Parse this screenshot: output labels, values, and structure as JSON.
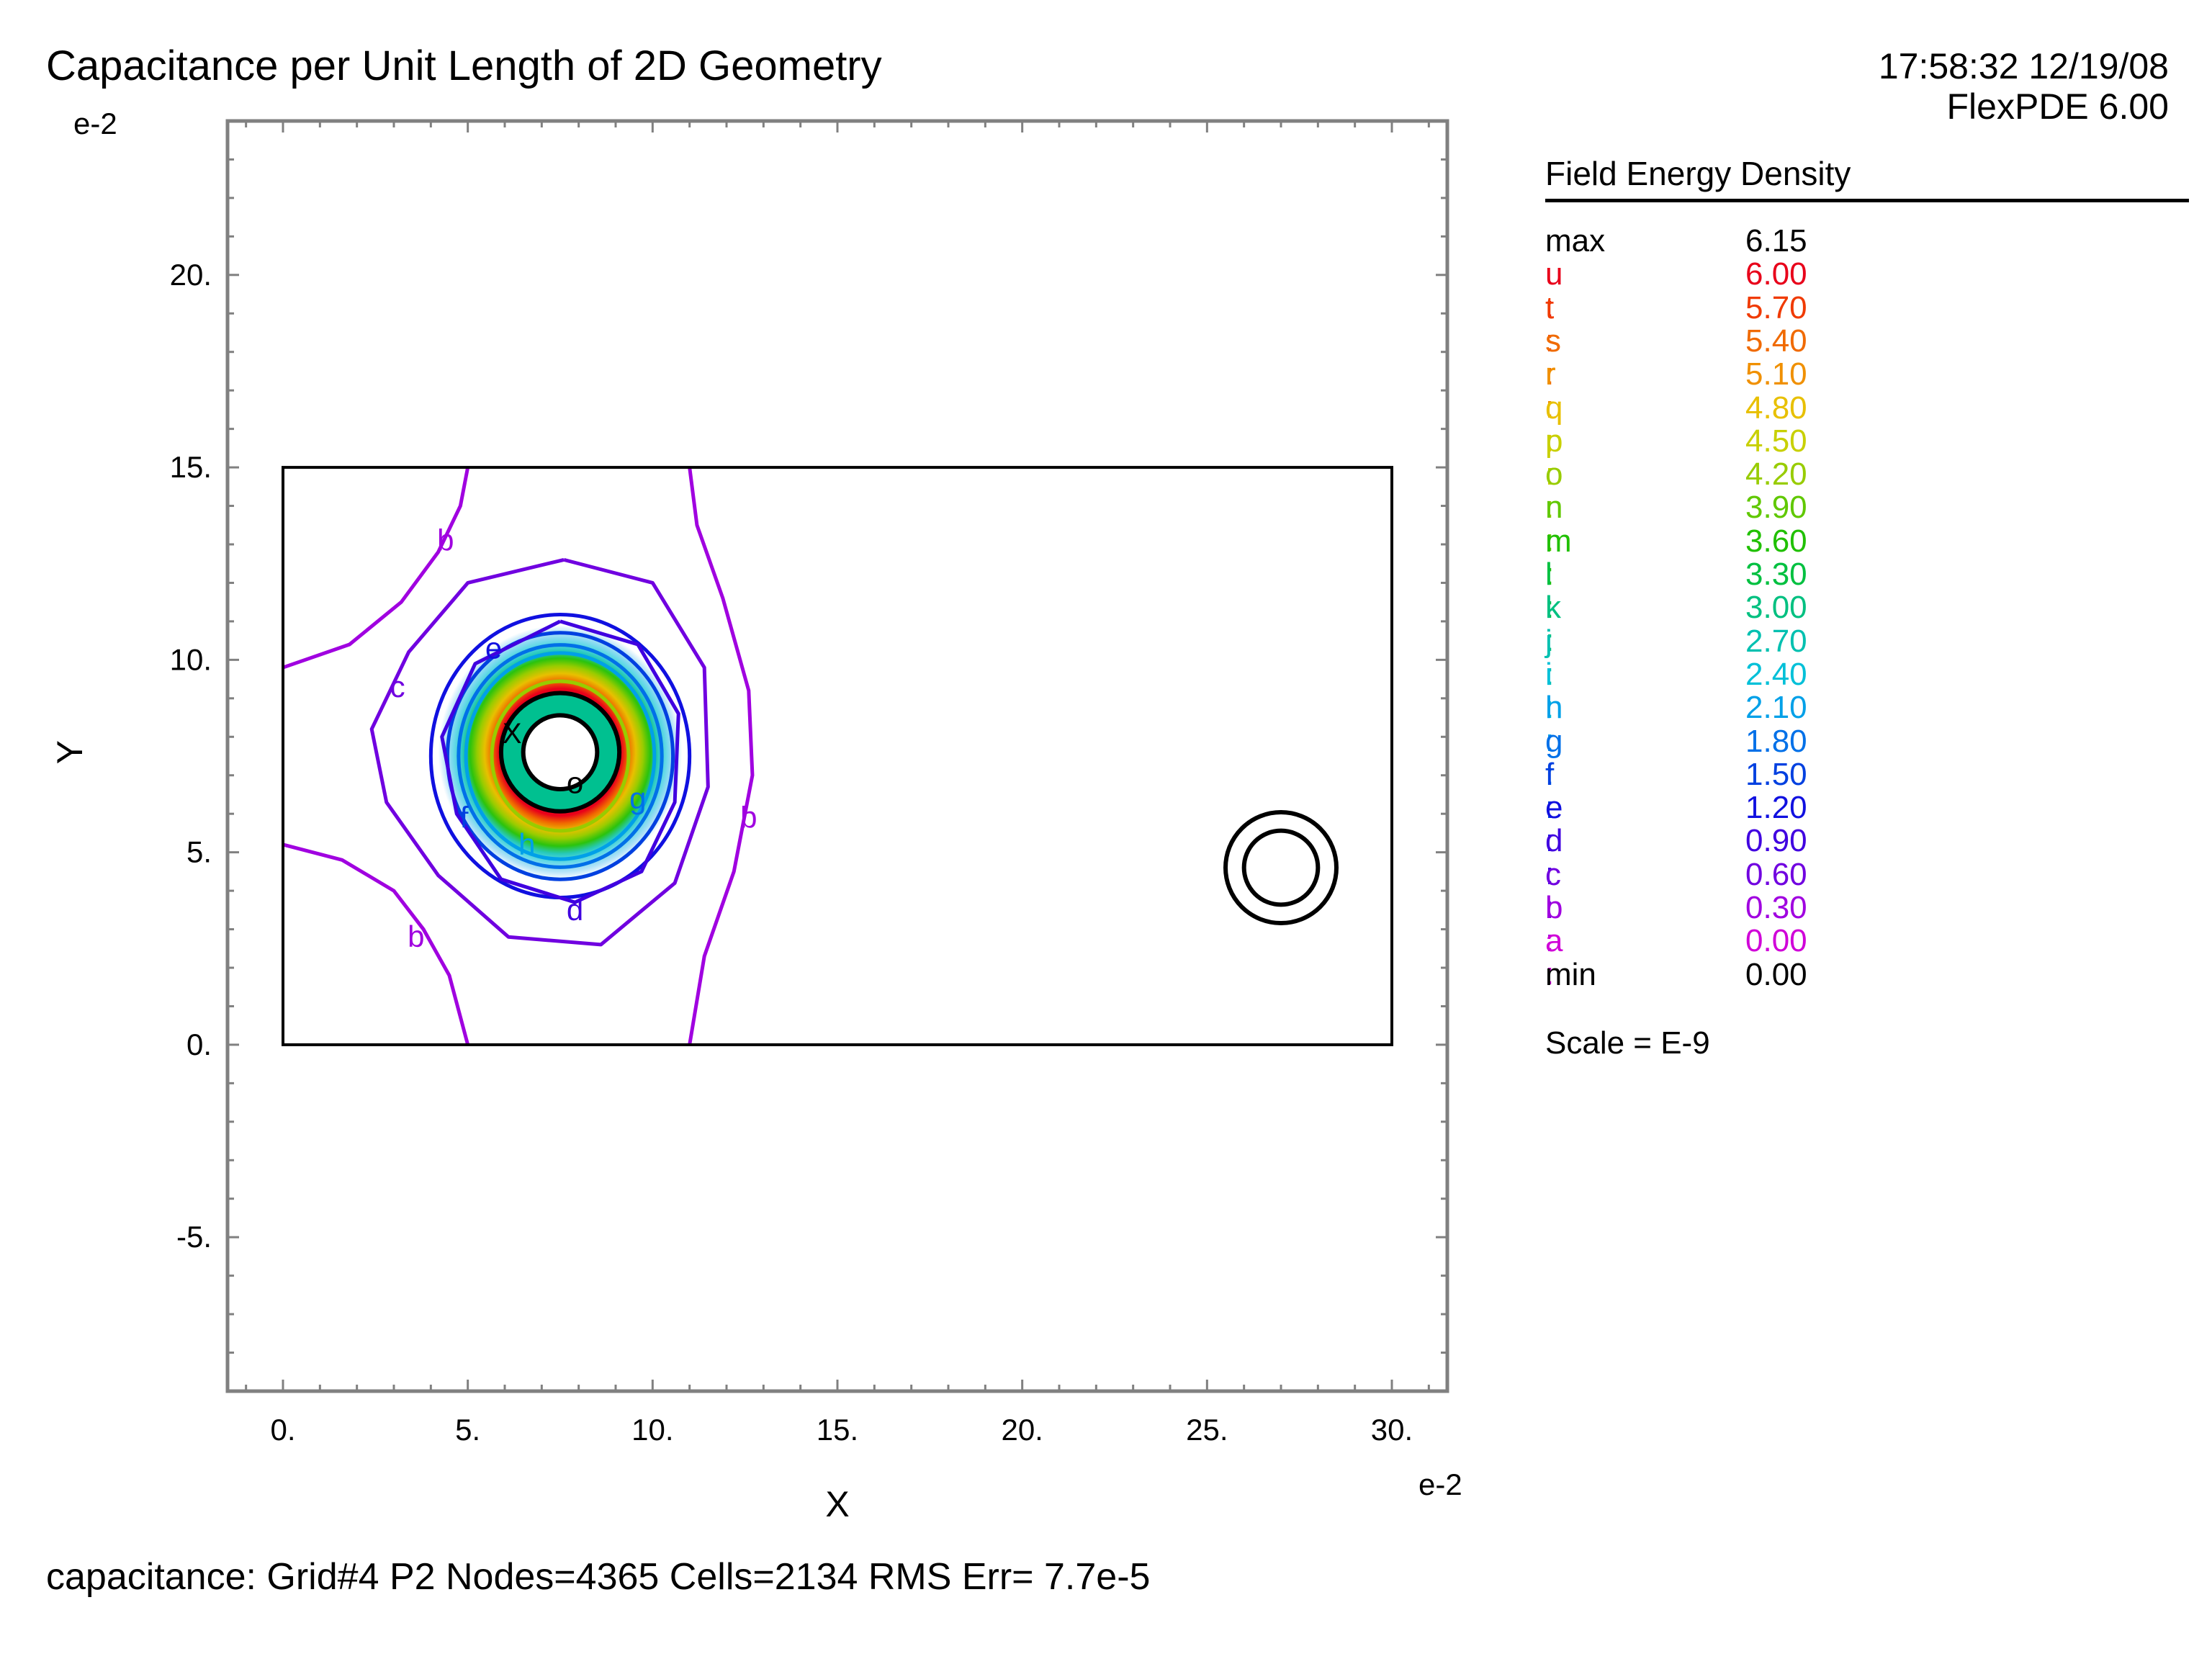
{
  "header": {
    "title": "Capacitance per Unit Length of 2D Geometry",
    "timestamp": "17:58:32 12/19/08",
    "software": "FlexPDE 6.00"
  },
  "footer": {
    "status": "capacitance:  Grid#4  P2  Nodes=4365 Cells=2134 RMS Err= 7.7e-5"
  },
  "legend": {
    "title": "Field Energy Density",
    "scale_note": "Scale = E-9",
    "rows": [
      {
        "name": "max",
        "value": "6.15",
        "color": "#000000"
      },
      {
        "name": "u :",
        "value": "6.00",
        "color": "#e8001a"
      },
      {
        "name": "t :",
        "value": "5.70",
        "color": "#f03a00"
      },
      {
        "name": "s :",
        "value": "5.40",
        "color": "#f06a00"
      },
      {
        "name": "r :",
        "value": "5.10",
        "color": "#f09000"
      },
      {
        "name": "q :",
        "value": "4.80",
        "color": "#e8c000"
      },
      {
        "name": "p :",
        "value": "4.50",
        "color": "#c8d000"
      },
      {
        "name": "o :",
        "value": "4.20",
        "color": "#98cc00"
      },
      {
        "name": "n :",
        "value": "3.90",
        "color": "#60c800"
      },
      {
        "name": "m :",
        "value": "3.60",
        "color": "#20c000"
      },
      {
        "name": "l :",
        "value": "3.30",
        "color": "#00c040"
      },
      {
        "name": "k :",
        "value": "3.00",
        "color": "#00c080"
      },
      {
        "name": "j :",
        "value": "2.70",
        "color": "#00c0b0"
      },
      {
        "name": "i :",
        "value": "2.40",
        "color": "#00c0d8"
      },
      {
        "name": "h :",
        "value": "2.10",
        "color": "#00a0e8"
      },
      {
        "name": "g :",
        "value": "1.80",
        "color": "#0070e8"
      },
      {
        "name": "f :",
        "value": "1.50",
        "color": "#0040e0"
      },
      {
        "name": "e :",
        "value": "1.20",
        "color": "#1010e0"
      },
      {
        "name": "d :",
        "value": "0.90",
        "color": "#4000e0"
      },
      {
        "name": "c :",
        "value": "0.60",
        "color": "#7000e0"
      },
      {
        "name": "b :",
        "value": "0.30",
        "color": "#a000e0"
      },
      {
        "name": "a :",
        "value": "0.00",
        "color": "#d000d8"
      },
      {
        "name": "min",
        "value": "0.00",
        "color": "#000000"
      }
    ]
  },
  "chart_data": {
    "type": "contour",
    "xlabel": "X",
    "ylabel": "Y",
    "x_exponent": "e-2",
    "y_exponent": "e-2",
    "xlim": [
      -1.5,
      31.5
    ],
    "ylim": [
      -9,
      24
    ],
    "x_ticks": [
      0,
      5,
      10,
      15,
      20,
      25,
      30
    ],
    "x_tick_labels": [
      "0.",
      "5.",
      "10.",
      "15.",
      "20.",
      "25.",
      "30."
    ],
    "y_ticks": [
      -5,
      0,
      5,
      10,
      15,
      20
    ],
    "y_tick_labels": [
      "-5.",
      "0.",
      "5.",
      "10.",
      "15.",
      "20."
    ],
    "domain_box": {
      "x": [
        0,
        30
      ],
      "y": [
        0,
        15
      ]
    },
    "conductors": [
      {
        "cx": 7.5,
        "cy": 7.6,
        "r_inner": 1.0,
        "r_outer": 1.6
      },
      {
        "cx": 27.0,
        "cy": 4.6,
        "r_inner": 1.0,
        "r_outer": 1.5
      }
    ],
    "contour_levels": [
      {
        "label": "b",
        "value": 0.3,
        "label_positions": [
          [
            4.4,
            13.1
          ],
          [
            3.6,
            2.8
          ],
          [
            12.6,
            5.9
          ]
        ]
      },
      {
        "label": "c",
        "value": 0.6,
        "label_positions": [
          [
            3.1,
            9.3
          ]
        ]
      },
      {
        "label": "d",
        "value": 0.9,
        "label_positions": [
          [
            7.9,
            3.5
          ]
        ]
      },
      {
        "label": "e",
        "value": 1.2,
        "label_positions": [
          [
            5.7,
            10.3
          ]
        ]
      },
      {
        "label": "f",
        "value": 1.5,
        "label_positions": [
          [
            4.9,
            5.9
          ]
        ]
      },
      {
        "label": "g",
        "value": 1.8,
        "label_positions": [
          [
            9.6,
            6.4
          ]
        ]
      },
      {
        "label": "h",
        "value": 2.1,
        "label_positions": [
          [
            6.6,
            5.2
          ]
        ]
      },
      {
        "label": "o",
        "value": 4.2,
        "label_positions": [
          [
            7.9,
            6.8
          ]
        ]
      }
    ],
    "markers": [
      {
        "label": "X",
        "x": 6.2,
        "y": 8.1
      }
    ]
  }
}
